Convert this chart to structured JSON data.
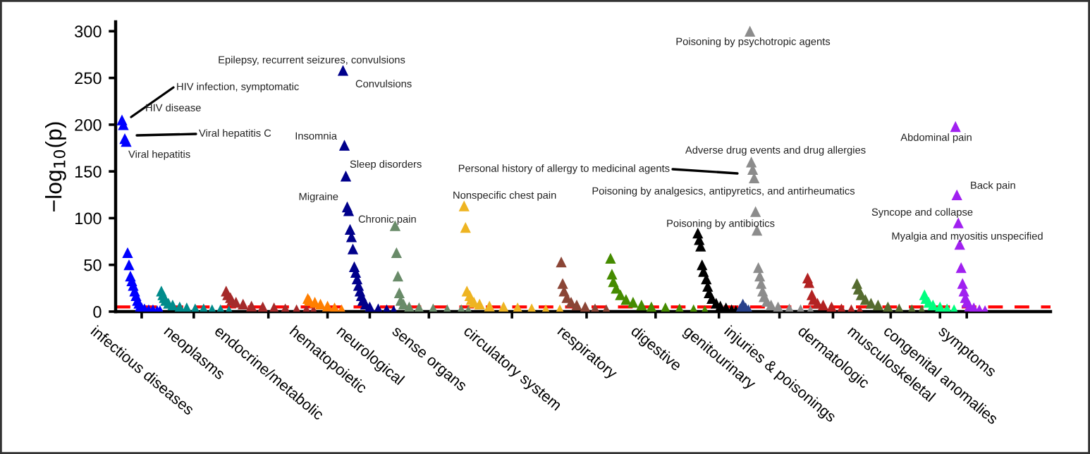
{
  "chart_data": {
    "type": "scatter",
    "ylabel": "−log$_{10}$(p)",
    "marker": "triangle",
    "grid": false,
    "ylim": [
      0,
      310
    ],
    "yticks": [
      0,
      50,
      100,
      150,
      200,
      250,
      300
    ],
    "categories": [
      null,
      null,
      null,
      null,
      null,
      null,
      null,
      null,
      null,
      null,
      null,
      null,
      null,
      null,
      null,
      null,
      null,
      null,
      "infectious diseases",
      null,
      null,
      null,
      null,
      null,
      null,
      null,
      null,
      null,
      null,
      null,
      null,
      null,
      null,
      null,
      null,
      null,
      null,
      null,
      null,
      null,
      null,
      null,
      null,
      null,
      null,
      null,
      null,
      null,
      null,
      null,
      null,
      null,
      null,
      null,
      null,
      "neoplasms",
      null,
      null,
      null,
      null,
      null,
      null,
      null,
      null,
      null,
      null,
      null,
      null,
      null,
      null,
      null,
      null,
      null,
      null,
      null,
      null,
      null,
      null,
      null,
      null,
      null,
      null,
      null,
      null,
      null,
      null,
      null,
      null,
      null,
      null,
      null,
      null,
      null,
      null,
      null,
      null,
      null,
      null,
      null,
      null,
      null,
      null,
      null,
      null,
      null,
      null,
      null,
      null,
      "endocrine/metabolic",
      null,
      null,
      null,
      null,
      null,
      null,
      null,
      null,
      null,
      null,
      null,
      null,
      null,
      null,
      null,
      null,
      null,
      null,
      null,
      null,
      null,
      null,
      null,
      null,
      null,
      null,
      null,
      null,
      null,
      null,
      null,
      null,
      null,
      null,
      null,
      null,
      null,
      null,
      null,
      null,
      null,
      "hematopoietic",
      null,
      null,
      null,
      null,
      null,
      null,
      null,
      null,
      null,
      null,
      null,
      null,
      null,
      null,
      null,
      null,
      null,
      null,
      null,
      null,
      null,
      null,
      null,
      null,
      null,
      null,
      null,
      null,
      null,
      "neurological",
      null,
      null,
      null,
      null,
      null,
      null,
      null,
      null,
      null,
      null,
      null,
      null,
      null,
      null,
      null,
      null,
      null,
      null,
      null,
      null,
      null,
      null,
      null,
      null,
      null,
      null,
      null,
      null,
      null,
      null,
      null,
      null,
      null,
      null,
      null,
      null,
      null,
      null,
      null,
      null,
      null,
      "sense organs",
      null,
      null,
      null,
      null,
      null,
      null,
      null,
      null,
      null,
      null,
      null,
      null,
      null,
      null,
      null,
      null,
      null,
      null,
      null,
      null,
      null,
      null,
      null,
      null,
      null,
      null,
      null,
      null,
      null,
      null,
      null,
      null,
      null,
      null,
      null,
      null,
      null,
      null,
      null,
      null,
      null,
      null,
      null,
      null,
      null,
      null,
      null,
      null,
      null,
      null,
      null,
      null,
      null,
      null,
      null,
      null,
      null,
      null,
      "circulatory system",
      null,
      null,
      null,
      null,
      null,
      null,
      null,
      null,
      null,
      null,
      null,
      null,
      null,
      null,
      null,
      null,
      null,
      null,
      null,
      null,
      null,
      null,
      null,
      null,
      null,
      null,
      null,
      null,
      null,
      null,
      null,
      null,
      null,
      null,
      null,
      null,
      null,
      null,
      null,
      null,
      null,
      null,
      null,
      null,
      null,
      null,
      null,
      null,
      null,
      null,
      null,
      null,
      "respiratory",
      null,
      null,
      null,
      null,
      null,
      null,
      null,
      null,
      null,
      null,
      null,
      null,
      null,
      null,
      null,
      null,
      null,
      null,
      null,
      null,
      null,
      null,
      null,
      null,
      null,
      null,
      null,
      null,
      null,
      null,
      null,
      null,
      null,
      null,
      null,
      null,
      null,
      null,
      null,
      null,
      null,
      null,
      null,
      null,
      null,
      null,
      null,
      null,
      "digestive",
      null,
      null,
      null,
      null,
      null,
      null,
      null,
      null,
      null,
      null,
      null,
      null,
      null,
      null,
      null,
      null,
      null,
      null,
      null,
      null,
      null,
      null,
      null,
      null,
      null,
      null,
      null,
      null,
      null,
      null,
      null,
      null,
      null,
      null,
      null,
      null,
      null,
      null,
      null,
      null,
      null,
      null,
      null,
      null,
      "genitourinary",
      null,
      null,
      null,
      null,
      null,
      null,
      null,
      null,
      null,
      null,
      null,
      null,
      null,
      null,
      null,
      null,
      null,
      null,
      null,
      null,
      null,
      null,
      null,
      null,
      null,
      null,
      null,
      null,
      null,
      null,
      null,
      null,
      null,
      null,
      null,
      null,
      null,
      null,
      null,
      null,
      null,
      null,
      "injuries & poisonings",
      null,
      null,
      null,
      null,
      null,
      null,
      null,
      null,
      null,
      null,
      null,
      null,
      null,
      null,
      null,
      null,
      null,
      null,
      null,
      null,
      null,
      null,
      null,
      null,
      null,
      null,
      null,
      null,
      null,
      null,
      null,
      null,
      null,
      null,
      null,
      null,
      null,
      "dermatologic",
      null,
      null,
      null,
      null,
      null,
      null,
      null,
      null,
      null,
      null,
      null,
      null,
      null,
      null,
      null,
      null,
      null,
      null,
      null,
      null,
      null,
      null,
      null,
      null,
      null,
      null,
      null,
      null,
      null,
      null,
      null,
      null,
      null,
      null,
      null,
      null,
      null,
      null,
      null,
      null,
      "musculoskeletal",
      null,
      null,
      null,
      null,
      null,
      null,
      null,
      null,
      null,
      null,
      null,
      null,
      null,
      null,
      null,
      null,
      null,
      null,
      null,
      null,
      null,
      null,
      null,
      null,
      null,
      null,
      null,
      null,
      null,
      null,
      null,
      null,
      null,
      null,
      "congenital anomalies",
      null,
      null,
      null,
      null,
      null,
      null,
      null,
      null,
      null,
      null,
      null,
      null,
      null,
      null,
      null,
      null,
      null,
      null,
      "symptoms",
      null,
      null,
      null,
      null,
      null,
      null,
      null,
      null,
      null,
      null,
      null,
      null,
      null,
      null,
      null,
      null,
      null,
      null,
      null,
      null,
      null,
      null,
      null,
      null,
      null,
      null,
      null,
      null,
      null,
      null,
      null,
      null,
      null,
      null,
      null,
      null,
      null,
      null,
      null,
      null,
      null,
      null,
      null,
      null,
      null,
      null,
      null,
      null,
      null,
      null,
      null,
      null,
      null,
      null,
      null,
      null,
      null,
      null,
      null
    ],
    "values": [
      null,
      null,
      null,
      null,
      205,
      200,
      185,
      182,
      63,
      50,
      38,
      33,
      28,
      22,
      17,
      12,
      9,
      6,
      4,
      null,
      3,
      null,
      null,
      2,
      null,
      null,
      2,
      null,
      null,
      1,
      null,
      1,
      22,
      18,
      15,
      12,
      null,
      9,
      null,
      null,
      7,
      null,
      null,
      null,
      null,
      5,
      null,
      null,
      null,
      null,
      4,
      null,
      null,
      null,
      null,
      null,
      3,
      null,
      null,
      null,
      null,
      null,
      3,
      null,
      null,
      null,
      null,
      null,
      2,
      null,
      null,
      null,
      null,
      null,
      2,
      null,
      null,
      null,
      22,
      18,
      1,
      15,
      12,
      null,
      null,
      10,
      null,
      null,
      null,
      null,
      8,
      null,
      null,
      null,
      null,
      null,
      6,
      null,
      null,
      null,
      null,
      null,
      null,
      null,
      5,
      null,
      null,
      null,
      null,
      null,
      null,
      null,
      4,
      null,
      null,
      null,
      null,
      null,
      null,
      null,
      3,
      null,
      null,
      null,
      null,
      null,
      null,
      null,
      2,
      null,
      null,
      null,
      null,
      null,
      null,
      2,
      14,
      12,
      null,
      null,
      1,
      10,
      null,
      null,
      null,
      8,
      null,
      null,
      null,
      null,
      6,
      null,
      null,
      null,
      null,
      4,
      null,
      null,
      null,
      null,
      2,
      258,
      178,
      145,
      112,
      108,
      88,
      80,
      67,
      48,
      42,
      35,
      28,
      22,
      17,
      12,
      null,
      8,
      null,
      null,
      5,
      null,
      null,
      null,
      null,
      null,
      3,
      null,
      null,
      null,
      null,
      null,
      2,
      null,
      null,
      null,
      null,
      1,
      92,
      63,
      38,
      20,
      12,
      null,
      8,
      null,
      null,
      null,
      5,
      null,
      null,
      null,
      null,
      null,
      null,
      4,
      null,
      null,
      null,
      null,
      null,
      null,
      null,
      null,
      null,
      3,
      null,
      null,
      null,
      null,
      null,
      null,
      null,
      null,
      null,
      2,
      null,
      null,
      null,
      null,
      null,
      null,
      null,
      null,
      null,
      2,
      null,
      113,
      90,
      22,
      1,
      17,
      13,
      null,
      10,
      null,
      null,
      null,
      8,
      null,
      null,
      null,
      null,
      null,
      null,
      6,
      null,
      null,
      null,
      null,
      null,
      null,
      null,
      null,
      null,
      5,
      null,
      null,
      null,
      null,
      null,
      null,
      null,
      null,
      null,
      4,
      null,
      null,
      null,
      null,
      null,
      null,
      null,
      null,
      null,
      3,
      null,
      null,
      null,
      null,
      null,
      null,
      null,
      null,
      null,
      2,
      null,
      null,
      null,
      null,
      null,
      null,
      null,
      null,
      null,
      2,
      53,
      30,
      22,
      null,
      15,
      null,
      null,
      10,
      null,
      null,
      null,
      7,
      null,
      null,
      null,
      null,
      null,
      5,
      null,
      null,
      null,
      null,
      null,
      null,
      3,
      null,
      null,
      null,
      null,
      null,
      null,
      null,
      2,
      null,
      null,
      57,
      40,
      32,
      null,
      25,
      null,
      null,
      18,
      null,
      null,
      null,
      13,
      null,
      null,
      null,
      null,
      10,
      null,
      null,
      null,
      null,
      null,
      7,
      null,
      null,
      null,
      null,
      null,
      null,
      5,
      null,
      null,
      null,
      null,
      null,
      null,
      null,
      null,
      null,
      4,
      null,
      null,
      null,
      null,
      null,
      null,
      null,
      null,
      null,
      3,
      null,
      null,
      null,
      null,
      null,
      null,
      null,
      null,
      null,
      2,
      null,
      null,
      84,
      77,
      70,
      50,
      43,
      1,
      35,
      27,
      20,
      null,
      14,
      null,
      null,
      9,
      null,
      null,
      6,
      null,
      null,
      null,
      4,
      null,
      null,
      null,
      2,
      null,
      null,
      1,
      null,
      null,
      3,
      null,
      8,
      null,
      4,
      null,
      2,
      300,
      160,
      152,
      143,
      107,
      87,
      47,
      38,
      30,
      22,
      16,
      null,
      11,
      null,
      null,
      7,
      null,
      null,
      null,
      null,
      5,
      null,
      null,
      null,
      null,
      null,
      null,
      null,
      3,
      null,
      null,
      null,
      null,
      null,
      null,
      null,
      2,
      null,
      null,
      null,
      null,
      36,
      31,
      1,
      18,
      13,
      null,
      null,
      9,
      null,
      null,
      null,
      7,
      null,
      null,
      null,
      null,
      null,
      5,
      null,
      null,
      null,
      null,
      null,
      null,
      3,
      null,
      null,
      null,
      null,
      null,
      null,
      2,
      null,
      null,
      null,
      30,
      24,
      1,
      18,
      null,
      null,
      13,
      null,
      null,
      null,
      9,
      null,
      null,
      null,
      null,
      7,
      null,
      null,
      null,
      null,
      null,
      null,
      5,
      null,
      null,
      null,
      null,
      null,
      null,
      null,
      3,
      null,
      null,
      null,
      null,
      null,
      null,
      null,
      null,
      2,
      null,
      null,
      null,
      null,
      null,
      null,
      1,
      null,
      18,
      14,
      null,
      10,
      null,
      null,
      7,
      null,
      null,
      null,
      null,
      5,
      null,
      null,
      null,
      null,
      3,
      null,
      null,
      null,
      null,
      2,
      198,
      125,
      95,
      72,
      47,
      30,
      22,
      15,
      10,
      null,
      6,
      null,
      null,
      4,
      null,
      null,
      null,
      2,
      null,
      null,
      null,
      1,
      null,
      null,
      null,
      null,
      null,
      null,
      null,
      null,
      null,
      null,
      null,
      null,
      null,
      null,
      null,
      null,
      null,
      null,
      null,
      null,
      null,
      null,
      null,
      null,
      null,
      null,
      null,
      null,
      null,
      null,
      null,
      null,
      null,
      null,
      null,
      null,
      null,
      null,
      null,
      null,
      null,
      null,
      null,
      null,
      null,
      null
    ],
    "colors": [
      null,
      null,
      null,
      null,
      "#0000ff",
      "#0000ff",
      "#0000ff",
      "#0000ff",
      "#0000ff",
      "#0000ff",
      "#0000ff",
      "#0000ff",
      "#0000ff",
      "#0000ff",
      "#0000ff",
      "#0000ff",
      "#0000ff",
      "#0000ff",
      "#0000ff",
      null,
      "#0000ff",
      null,
      null,
      "#0000ff",
      null,
      null,
      "#0000ff",
      null,
      null,
      "#0000ff",
      null,
      "#0000ff",
      "#008b8b",
      "#008b8b",
      "#008b8b",
      "#008b8b",
      null,
      "#008b8b",
      null,
      null,
      "#008b8b",
      null,
      null,
      null,
      null,
      "#008b8b",
      null,
      null,
      null,
      null,
      "#008b8b",
      null,
      null,
      null,
      null,
      null,
      "#008b8b",
      null,
      null,
      null,
      null,
      null,
      "#008b8b",
      null,
      null,
      null,
      null,
      null,
      "#008b8b",
      null,
      null,
      null,
      null,
      null,
      "#008b8b",
      null,
      null,
      null,
      "#a52a2a",
      "#a52a2a",
      "#008b8b",
      "#a52a2a",
      "#a52a2a",
      null,
      null,
      "#a52a2a",
      null,
      null,
      null,
      null,
      "#a52a2a",
      null,
      null,
      null,
      null,
      null,
      "#a52a2a",
      null,
      null,
      null,
      null,
      null,
      null,
      null,
      "#a52a2a",
      null,
      null,
      null,
      null,
      null,
      null,
      null,
      "#a52a2a",
      null,
      null,
      null,
      null,
      null,
      null,
      null,
      "#a52a2a",
      null,
      null,
      null,
      null,
      null,
      null,
      null,
      "#a52a2a",
      null,
      null,
      null,
      null,
      null,
      null,
      "#a52a2a",
      "#ff7f00",
      "#ff7f00",
      null,
      null,
      "#a52a2a",
      "#ff7f00",
      null,
      null,
      null,
      "#ff7f00",
      null,
      null,
      null,
      null,
      "#ff7f00",
      null,
      null,
      null,
      null,
      "#ff7f00",
      null,
      null,
      null,
      null,
      "#ff7f00",
      "#00008b",
      "#00008b",
      "#00008b",
      "#00008b",
      "#00008b",
      "#00008b",
      "#00008b",
      "#00008b",
      "#00008b",
      "#00008b",
      "#00008b",
      "#00008b",
      "#00008b",
      "#00008b",
      "#00008b",
      null,
      "#00008b",
      null,
      null,
      "#00008b",
      null,
      null,
      null,
      null,
      null,
      "#00008b",
      null,
      null,
      null,
      null,
      null,
      "#00008b",
      null,
      null,
      null,
      null,
      "#00008b",
      "#698b69",
      "#698b69",
      "#698b69",
      "#698b69",
      "#698b69",
      null,
      "#698b69",
      null,
      null,
      null,
      "#698b69",
      null,
      null,
      null,
      null,
      null,
      null,
      "#698b69",
      null,
      null,
      null,
      null,
      null,
      null,
      null,
      null,
      null,
      "#698b69",
      null,
      null,
      null,
      null,
      null,
      null,
      null,
      null,
      null,
      "#698b69",
      null,
      null,
      null,
      null,
      null,
      null,
      null,
      null,
      null,
      "#698b69",
      null,
      "#eeb422",
      "#eeb422",
      "#eeb422",
      "#698b69",
      "#eeb422",
      "#eeb422",
      null,
      "#eeb422",
      null,
      null,
      null,
      "#eeb422",
      null,
      null,
      null,
      null,
      null,
      null,
      "#eeb422",
      null,
      null,
      null,
      null,
      null,
      null,
      null,
      null,
      null,
      "#eeb422",
      null,
      null,
      null,
      null,
      null,
      null,
      null,
      null,
      null,
      "#eeb422",
      null,
      null,
      null,
      null,
      null,
      null,
      null,
      null,
      null,
      "#eeb422",
      null,
      null,
      null,
      null,
      null,
      null,
      null,
      null,
      null,
      "#eeb422",
      null,
      null,
      null,
      null,
      null,
      null,
      null,
      null,
      null,
      "#eeb422",
      "#8b4536",
      "#8b4536",
      "#8b4536",
      null,
      "#8b4536",
      null,
      null,
      "#8b4536",
      null,
      null,
      null,
      "#8b4536",
      null,
      null,
      null,
      null,
      null,
      "#8b4536",
      null,
      null,
      null,
      null,
      null,
      null,
      "#8b4536",
      null,
      null,
      null,
      null,
      null,
      null,
      null,
      "#8b4536",
      null,
      null,
      "#458b00",
      "#458b00",
      "#458b00",
      null,
      "#458b00",
      null,
      null,
      "#458b00",
      null,
      null,
      null,
      "#458b00",
      null,
      null,
      null,
      null,
      "#458b00",
      null,
      null,
      null,
      null,
      null,
      "#458b00",
      null,
      null,
      null,
      null,
      null,
      null,
      "#458b00",
      null,
      null,
      null,
      null,
      null,
      null,
      null,
      null,
      null,
      "#458b00",
      null,
      null,
      null,
      null,
      null,
      null,
      null,
      null,
      null,
      "#458b00",
      null,
      null,
      null,
      null,
      null,
      null,
      null,
      null,
      null,
      "#458b00",
      null,
      null,
      "#000000",
      "#000000",
      "#000000",
      "#000000",
      "#000000",
      "#458b00",
      "#000000",
      "#000000",
      "#000000",
      null,
      "#000000",
      null,
      null,
      "#000000",
      null,
      null,
      "#000000",
      null,
      null,
      null,
      "#000000",
      null,
      null,
      null,
      "#000000",
      null,
      null,
      "#000000",
      null,
      null,
      "#27408b",
      null,
      "#27408b",
      null,
      "#27408b",
      null,
      "#27408b",
      "#8c8c8c",
      "#8c8c8c",
      "#8c8c8c",
      "#8c8c8c",
      "#8c8c8c",
      "#8c8c8c",
      "#8c8c8c",
      "#8c8c8c",
      "#8c8c8c",
      "#8c8c8c",
      "#8c8c8c",
      null,
      "#8c8c8c",
      null,
      null,
      "#8c8c8c",
      null,
      null,
      null,
      null,
      "#8c8c8c",
      null,
      null,
      null,
      null,
      null,
      null,
      null,
      "#8c8c8c",
      null,
      null,
      null,
      null,
      null,
      null,
      null,
      "#8c8c8c",
      null,
      null,
      null,
      null,
      "#b22222",
      "#b22222",
      "#8c8c8c",
      "#b22222",
      "#b22222",
      null,
      null,
      "#b22222",
      null,
      null,
      null,
      "#b22222",
      null,
      null,
      null,
      null,
      null,
      "#b22222",
      null,
      null,
      null,
      null,
      null,
      null,
      "#b22222",
      null,
      null,
      null,
      null,
      null,
      null,
      "#b22222",
      null,
      null,
      null,
      "#556b2f",
      "#556b2f",
      "#b22222",
      "#556b2f",
      null,
      null,
      "#556b2f",
      null,
      null,
      null,
      "#556b2f",
      null,
      null,
      null,
      null,
      "#556b2f",
      null,
      null,
      null,
      null,
      null,
      null,
      "#556b2f",
      null,
      null,
      null,
      null,
      null,
      null,
      null,
      "#556b2f",
      null,
      null,
      null,
      null,
      null,
      null,
      null,
      null,
      "#556b2f",
      null,
      null,
      null,
      null,
      null,
      null,
      "#556b2f",
      null,
      "#00ff7f",
      "#00ff7f",
      null,
      "#00ff7f",
      null,
      null,
      "#00ff7f",
      null,
      null,
      null,
      null,
      "#00ff7f",
      null,
      null,
      null,
      null,
      "#00ff7f",
      null,
      null,
      null,
      null,
      "#00ff7f",
      "#a020f0",
      "#a020f0",
      "#a020f0",
      "#a020f0",
      "#a020f0",
      "#a020f0",
      "#a020f0",
      "#a020f0",
      "#a020f0",
      null,
      "#a020f0",
      null,
      null,
      "#a020f0",
      null,
      null,
      null,
      "#a020f0",
      null,
      null,
      null,
      "#a020f0",
      null,
      null,
      null,
      null,
      null,
      null,
      null,
      null,
      null,
      null,
      null,
      null,
      null,
      null,
      null,
      null,
      null,
      null,
      null,
      null,
      null,
      null,
      null,
      null,
      null,
      null,
      null,
      null,
      null,
      null,
      null,
      null,
      null,
      null,
      null,
      null,
      null,
      null,
      null,
      null,
      null,
      null,
      null,
      null,
      null,
      null
    ],
    "ref_lines": [
      {
        "axis": "y",
        "value": 5,
        "color": "#ff0000",
        "line_style": "dashed"
      }
    ],
    "annotations": [
      "HIV infection, symptomatic",
      "HIV disease",
      "Viral hepatitis C",
      "Viral hepatitis",
      "Epilepsy, recurrent seizures, convulsions",
      "Convulsions",
      "Insomnia",
      "Sleep disorders",
      "Migraine",
      "Chronic pain",
      "Nonspecific chest pain",
      "Personal history of allergy to medicinal agents",
      "Poisoning by psychotropic agents",
      "Adverse drug events and drug allergies",
      "Poisoning by analgesics, antipyretics, and antirheumatics",
      "Poisoning by antibiotics",
      "Abdominal pain",
      "Back pain",
      "Syncope and collapse",
      "Myalgia and myositis unspecified"
    ]
  }
}
